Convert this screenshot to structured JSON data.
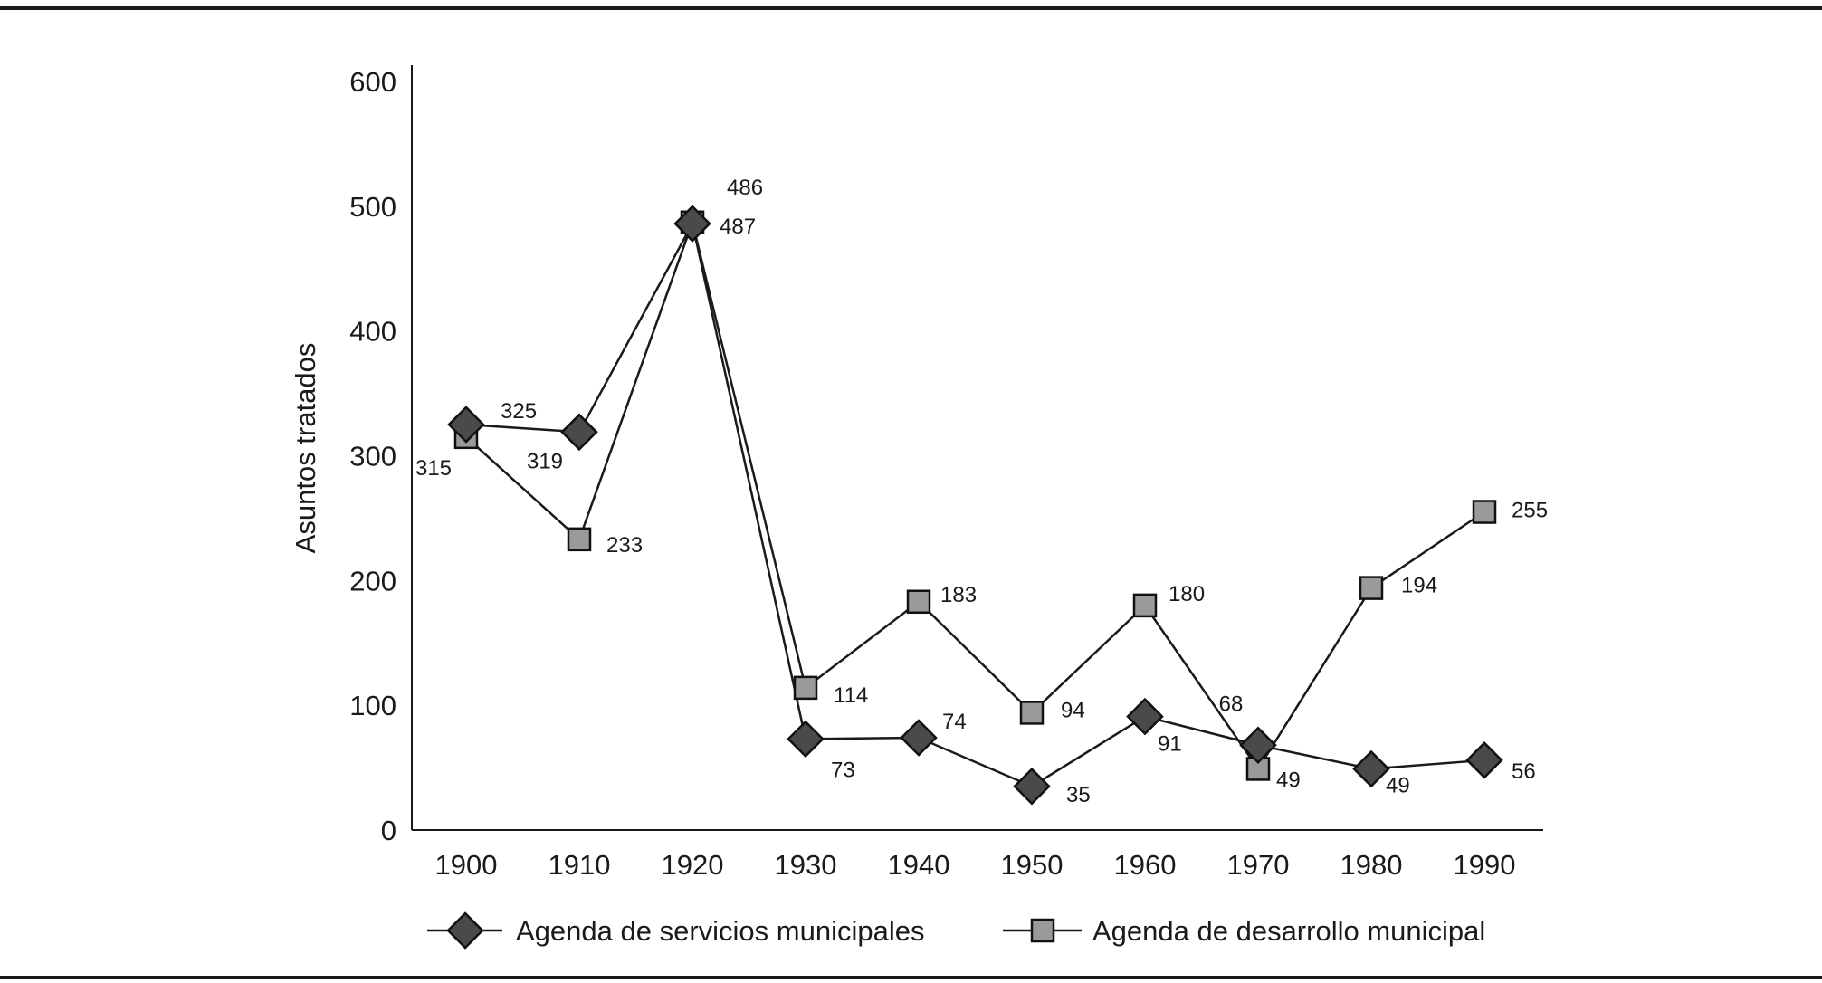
{
  "chart_data": {
    "type": "line",
    "title": "",
    "xlabel": "",
    "ylabel": "Asuntos tratados",
    "x": [
      1900,
      1910,
      1920,
      1930,
      1940,
      1950,
      1960,
      1970,
      1980,
      1990
    ],
    "x_tick_labels": [
      "1900",
      "1910",
      "1920",
      "1930",
      "1940",
      "1950",
      "1960",
      "1970",
      "1980",
      "1990"
    ],
    "ylim": [
      0,
      600
    ],
    "y_ticks": [
      0,
      100,
      200,
      300,
      400,
      500,
      600
    ],
    "y_tick_labels": [
      "0",
      "100",
      "200",
      "300",
      "400",
      "500",
      "600"
    ],
    "grid": false,
    "legend_position": "bottom",
    "series": [
      {
        "name": "Agenda de servicios municipales",
        "marker": "diamond",
        "color": "#4a4a4a",
        "values": [
          325,
          319,
          486,
          73,
          74,
          35,
          91,
          68,
          49,
          56
        ],
        "labels": [
          "325",
          "319",
          "486",
          "73",
          "74",
          "35",
          "91",
          "68",
          "49",
          "56"
        ]
      },
      {
        "name": "Agenda de desarrollo municipal",
        "marker": "square",
        "color": "#9a9a9a",
        "values": [
          315,
          233,
          487,
          114,
          183,
          94,
          180,
          49,
          194,
          255
        ],
        "labels": [
          "315",
          "233",
          "487",
          "114",
          "183",
          "94",
          "180",
          "49",
          "194",
          "255"
        ]
      }
    ]
  }
}
